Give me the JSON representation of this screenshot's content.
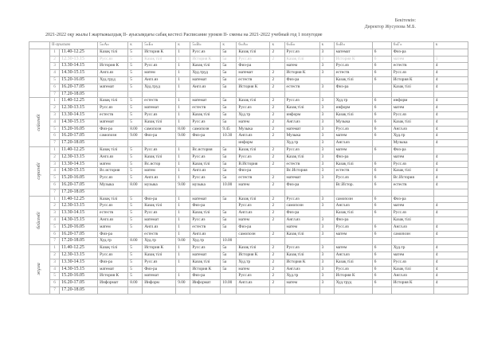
{
  "approval": {
    "line1": "Бекітемін:",
    "line2": "Директор Жусупова М.Б."
  },
  "title": "2021-2022 оқу жылы І жартыжылдық ІІ- ауысымдағы сабақ кестесі  Расписание уроков ІІ- смены на 2021-2022 учебный год 1 полугодие",
  "headers": [
    "ІІ-ауысым",
    "5«А»",
    "к",
    "5«Б»",
    "к",
    "5«В»",
    "к",
    "6«А»",
    "к",
    "6«Б»",
    "к",
    "6«В»",
    "",
    "6«Г»",
    "к"
  ],
  "times": [
    "11.40-12.25",
    "12.30-13.15",
    "13.30-14.15",
    "14.30-15.15",
    "15.20-16.05",
    "16.20-17.05",
    "17.20-18.05"
  ],
  "days": [
    {
      "label": "",
      "rows": [
        [
          "Казақ тілі",
          "5",
          "История К",
          "1",
          "Русс.яз",
          "5а",
          "Казақ тілі",
          "2",
          "Русс.яз",
          "3",
          "математ",
          "6",
          "Физ-ра",
          ""
        ],
        [
          "Русс.яз",
          "5",
          "Казақ тілі",
          "1",
          "История К",
          "5а",
          "Русс.яз",
          "2",
          "Казақ тілі",
          "3",
          "История К",
          "6",
          "матем",
          "1"
        ],
        [
          "История К",
          "5",
          "Русс.яз",
          "1",
          "Казақ тілі",
          "5а",
          "Физ-ра",
          "",
          "матем",
          "3",
          "Русс.яз",
          "6",
          "естеств",
          "4"
        ],
        [
          "Англ.яз",
          "5",
          "матем",
          "1",
          "Худ.труд",
          "5а",
          "математ",
          "2",
          "История К",
          "3",
          "естеств",
          "6",
          "Русс.яз",
          "4"
        ],
        [
          "Худ.труд",
          "5",
          "Англ.яз",
          "1",
          "математ",
          "5а",
          "естеств",
          "2",
          "Физ-ра",
          "",
          "Казақ тілі",
          "6",
          "История К",
          "4"
        ],
        [
          "математ",
          "5",
          "Худ.труд",
          "1",
          "Англ.яз",
          "5а",
          "История К",
          "2",
          "естеств",
          "3",
          "Физ-ра",
          "",
          "Казақ тілі",
          "4"
        ],
        [
          "",
          "",
          "",
          "",
          "",
          "",
          "",
          "",
          "",
          "",
          "",
          "",
          "",
          ""
        ]
      ]
    },
    {
      "label": "сейсенбі",
      "rows": [
        [
          "Казақ тілі",
          "5",
          "естеств",
          "1",
          "математ",
          "5а",
          "Казақ тілі",
          "2",
          "Русс.яз",
          "3",
          "Худ.тр",
          "6",
          "информ",
          "4"
        ],
        [
          "Русс.яз",
          "5",
          "математ",
          "1",
          "естеств",
          "5а",
          "Русс.яз",
          "2",
          "Казақ тілі",
          "3",
          "информ",
          "6",
          "матем",
          "4"
        ],
        [
          "естеств",
          "5",
          "Русс.яз",
          "1",
          "Казақ тілі",
          "5а",
          "Худ.тр",
          "2",
          "информ",
          "3",
          "Казақ тілі",
          "6",
          "Русс.яз",
          "4"
        ],
        [
          "математ",
          "5",
          "Казақ тілі",
          "1",
          "Русс.яз",
          "5а",
          "матем",
          "2",
          "Англ.яз",
          "3",
          "Музыка",
          "6",
          "Казақ тілі",
          "4"
        ],
        [
          "Физ-ра",
          "8.00",
          "самопозн",
          "8.00",
          "самопозн",
          "9.45",
          "Музыка",
          "2",
          "математ",
          "3",
          "Русс.яз",
          "6",
          "Англ.яз",
          "4"
        ],
        [
          "самопозн",
          "9.00",
          "Физ-ра",
          "9.00",
          "Физ-ра",
          "10.30",
          "Англ.яз",
          "2",
          "Музыка",
          "3",
          "матем",
          "6",
          "Худ.тр",
          "4"
        ],
        [
          "",
          "",
          "",
          "",
          "",
          "",
          "информ",
          "",
          "Худ.тр",
          "3",
          "Англ.яз",
          "",
          "Музыка",
          "4"
        ]
      ]
    },
    {
      "label": "сәрсенбі",
      "rows": [
        [
          "Казақ тілі",
          "5",
          "Русс.яз",
          "1",
          "Вс.история",
          "5а",
          "Казақ тілі",
          "2",
          "Русс.яз",
          "3",
          "матем",
          "6",
          "Физ-ра",
          ""
        ],
        [
          "Англ.яз",
          "5",
          "Казақ тілі",
          "1",
          "Русс.яз",
          "5а",
          "Русс.яз",
          "2",
          "Казақ тілі",
          "3",
          "Физ-ра",
          "",
          "матем",
          "4"
        ],
        [
          "матем",
          "5",
          "Вс.истор",
          "1",
          "Казақ тілі",
          "5а",
          "В.История",
          "2",
          "естеств",
          "3",
          "Казақ тілі",
          "6",
          "Русс.яз",
          "4"
        ],
        [
          "Вс.история",
          "5",
          "матем",
          "1",
          "Англ.яз",
          "5а",
          "Физ-ра",
          "",
          "Вс.История",
          "3",
          "естеств",
          "6",
          "Казақ тілі",
          "4"
        ],
        [
          "Русс.яз",
          "5",
          "Англ.яз",
          "1",
          "Русс.яз",
          "5а",
          "естеств",
          "2",
          "математ",
          "3",
          "Русс.яз",
          "6",
          "Вс.История",
          "4"
        ],
        [
          "Музыка",
          "8.00",
          "музыка",
          "9.00",
          "музыка",
          "10.00",
          "матем",
          "2",
          "Физ-ра",
          "",
          "Вс.Истор.",
          "6",
          "естеств",
          "4"
        ],
        [
          "",
          "",
          "",
          "",
          "",
          "",
          "",
          "",
          "",
          "",
          "",
          "",
          "",
          ""
        ]
      ]
    },
    {
      "label": "бейсенбі",
      "rows": [
        [
          "Казақ тілі",
          "5",
          "Физ-ра",
          "1",
          "математ",
          "5а",
          "Казақ тілі",
          "2",
          "Русс.яз",
          "3",
          "самопозн",
          "6",
          "Физ-ра",
          ""
        ],
        [
          "Русс.яз",
          "5",
          "Казақ тілі",
          "1",
          "Физ-ра",
          "",
          "Русс.яз",
          "2",
          "самопозн",
          "3",
          "Англ.яз",
          "6",
          "матем",
          "4"
        ],
        [
          "естеств",
          "5",
          "Русс.яз",
          "1",
          "Казақ тілі",
          "5а",
          "Англ.яз",
          "2",
          "Физ-ра",
          "",
          "Казақ тілі",
          "6",
          "Русс.яз",
          "4"
        ],
        [
          "Англ.яз",
          "5",
          "математ",
          "1",
          "Русс.яз",
          "5а",
          "матем",
          "2",
          "Англ.яз",
          "3",
          "Физ-ра",
          "",
          "Казақ тілі",
          ""
        ],
        [
          "матем",
          "5",
          "Англ.яз",
          "1",
          "естеств",
          "5а",
          "Физ-ра",
          "",
          "матем",
          "3",
          "Русс.яз",
          "6",
          "Англ.яз",
          "4"
        ],
        [
          "Физ-ра",
          "",
          "естеств",
          "1",
          "Англ.яз",
          "",
          "самопозн",
          "2",
          "Казақ тілі",
          "3",
          "матем",
          "6",
          "самопозн",
          "4"
        ],
        [
          "Худ.тр",
          "8.00",
          "Худ.тр",
          "9.00",
          "Худ.тр",
          "10.00",
          "",
          "",
          "",
          "",
          "",
          "",
          "",
          ""
        ]
      ]
    },
    {
      "label": "жұма",
      "rows": [
        [
          "Казақ тілі",
          "5",
          "История К",
          "1",
          "Русс.яз",
          "5а",
          "Казақ тілі",
          "2",
          "Русс.яз",
          "3",
          "матем",
          "6",
          "Худ.тр",
          "4"
        ],
        [
          "Русс.яз",
          "5",
          "Казақ тілі",
          "1",
          "математ",
          "5а",
          "История К",
          "2",
          "Казақ тілі",
          "3",
          "Англ.яз",
          "6",
          "матем",
          "4"
        ],
        [
          "Физ-ра",
          "5",
          "Русс.яз",
          "1",
          "Казақ тілі",
          "5а",
          "Худ.тр",
          "2",
          "История К",
          "3",
          "Казақ тілі",
          "6",
          "Русс.яз",
          "4"
        ],
        [
          "математ",
          "5",
          "Физ-ра",
          "",
          "История К",
          "5а",
          "матем",
          "2",
          "Англ.яз",
          "3",
          "Русс.яз",
          "6",
          "Казақ тілі",
          "4"
        ],
        [
          "История К",
          "5",
          "математ",
          "1",
          "Физ-ра",
          "",
          "Русс.яз",
          "2",
          "Худ.тр",
          "3",
          "История К",
          "6",
          "Англ.яз",
          "4"
        ],
        [
          "Информат",
          "8.00",
          "Информ",
          "9.00",
          "Информат",
          "10.00",
          "Англ.яз",
          "2",
          "матем",
          "3",
          "Худ.труд",
          "6",
          "История К",
          "4"
        ],
        [
          "",
          "",
          "",
          "",
          "",
          "",
          "",
          "",
          "",
          "",
          "",
          "",
          "",
          ""
        ]
      ]
    }
  ]
}
